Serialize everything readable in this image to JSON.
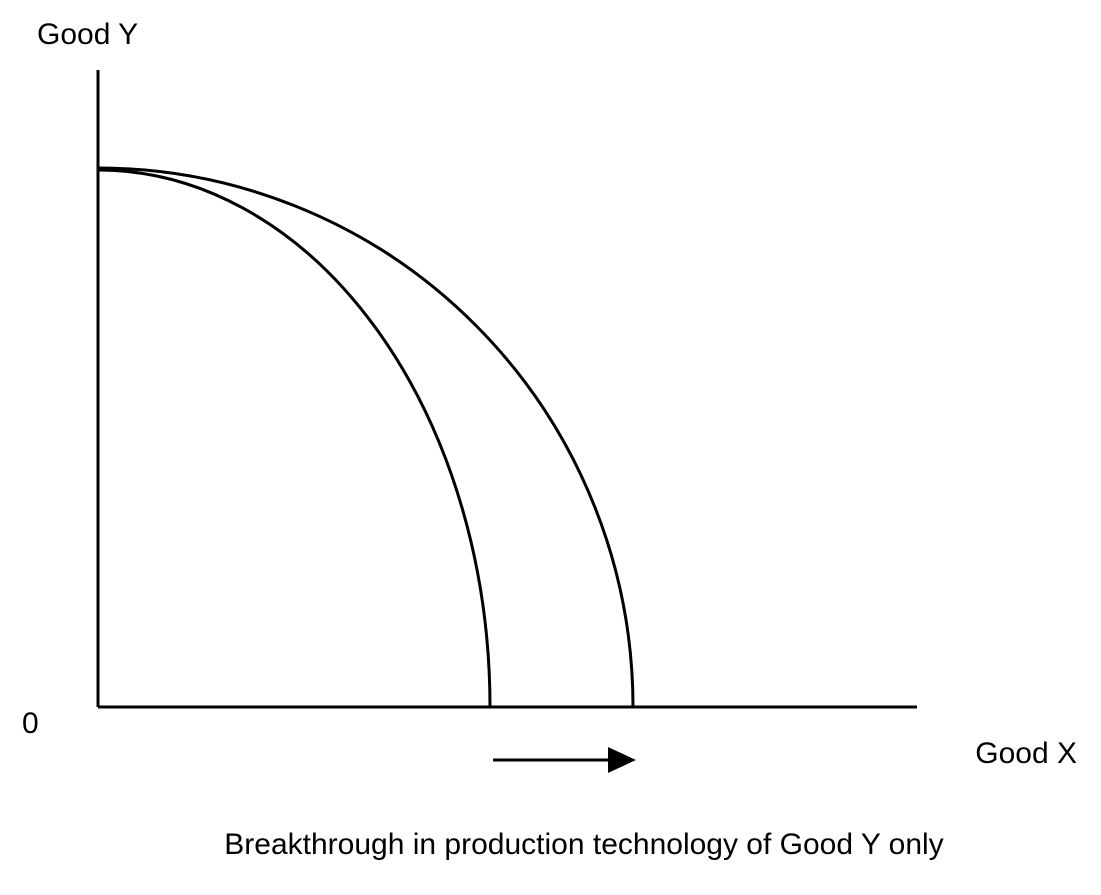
{
  "labels": {
    "y_axis": "Good Y",
    "origin": "0",
    "x_axis": "Good X",
    "caption": "Breakthrough in production technology of Good Y only"
  }
}
